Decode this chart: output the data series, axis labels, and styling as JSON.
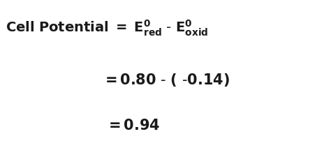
{
  "background_color": "#ffffff",
  "text_color": "#1a1a1a",
  "figsize": [
    4.74,
    2.35
  ],
  "dpi": 100,
  "line1_prefix": "Cell Potential = ",
  "line1_formula": "Eⁿ₀_red - Eⁿ₀_oxid",
  "line2": "= 0.80 - ( -0.14)",
  "line3": "= 0.94",
  "fontsize_line1": 14,
  "fontsize_line23": 15
}
